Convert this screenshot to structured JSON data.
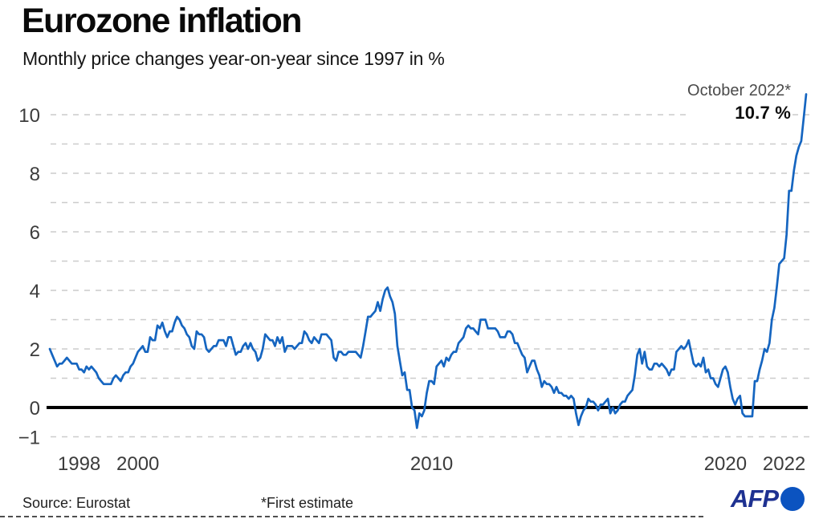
{
  "title": "Eurozone inflation",
  "subtitle": "Monthly price changes year-on-year since 1997 in %",
  "annotation": {
    "date": "October 2022*",
    "value": "10.7 %"
  },
  "footer": {
    "source": "Source: Eurostat",
    "note": "*First estimate",
    "brand": "AFP"
  },
  "colors": {
    "line": "#1565c0",
    "grid": "#cccccc",
    "zero_line": "#000000",
    "axis_label": "#3c3c3c",
    "annotation_date": "#4a4a4a",
    "annotation_value": "#0d0d0d",
    "brand_text": "#1e3191",
    "brand_dot": "#0b53c0"
  },
  "chart_data": {
    "type": "line",
    "title": "Eurozone inflation",
    "subtitle": "Monthly price changes year-on-year since 1997 in %",
    "ylabel": "%",
    "xlabel": "",
    "ylim": [
      -1.5,
      11
    ],
    "grid": "dashed horizontal at every integer, solid black line at 0",
    "legend_position": "none",
    "grid_values": [
      -1,
      0,
      1,
      2,
      3,
      4,
      5,
      6,
      7,
      8,
      9,
      10
    ],
    "y_ticks": [
      {
        "value": 10,
        "label": "10"
      },
      {
        "value": 8,
        "label": "8"
      },
      {
        "value": 6,
        "label": "6"
      },
      {
        "value": 4,
        "label": "4"
      },
      {
        "value": 2,
        "label": "2"
      },
      {
        "value": 0,
        "label": "0"
      },
      {
        "value": -1,
        "label": "−1"
      }
    ],
    "x_ticks": [
      {
        "year": 1998,
        "label": "1998"
      },
      {
        "year": 2000,
        "label": "2000"
      },
      {
        "year": 2010,
        "label": "2010"
      },
      {
        "year": 2020,
        "label": "2020"
      },
      {
        "year": 2022,
        "label": "2022"
      }
    ],
    "x_start_year": 1997,
    "start": "1997-01",
    "end": "2022-10",
    "frequency": "monthly",
    "last_point": {
      "label": "October 2022",
      "value": 10.7,
      "note": "First estimate"
    },
    "series": [
      {
        "name": "Eurozone inflation, % year-on-year",
        "values": [
          2.0,
          1.8,
          1.6,
          1.4,
          1.5,
          1.5,
          1.6,
          1.7,
          1.6,
          1.5,
          1.5,
          1.5,
          1.3,
          1.3,
          1.2,
          1.4,
          1.3,
          1.4,
          1.3,
          1.2,
          1.0,
          0.9,
          0.8,
          0.8,
          0.8,
          0.8,
          1.0,
          1.1,
          1.0,
          0.9,
          1.1,
          1.2,
          1.2,
          1.4,
          1.5,
          1.7,
          1.9,
          2.0,
          2.1,
          1.9,
          1.9,
          2.4,
          2.3,
          2.3,
          2.8,
          2.7,
          2.9,
          2.6,
          2.4,
          2.6,
          2.6,
          2.9,
          3.1,
          3.0,
          2.8,
          2.7,
          2.5,
          2.4,
          2.1,
          2.0,
          2.6,
          2.5,
          2.5,
          2.4,
          2.0,
          1.9,
          2.0,
          2.1,
          2.1,
          2.3,
          2.3,
          2.3,
          2.1,
          2.4,
          2.4,
          2.1,
          1.8,
          1.9,
          1.9,
          2.1,
          2.2,
          2.0,
          2.2,
          2.0,
          1.9,
          1.6,
          1.7,
          2.0,
          2.5,
          2.4,
          2.3,
          2.3,
          2.1,
          2.4,
          2.2,
          2.4,
          1.9,
          2.1,
          2.1,
          2.1,
          2.0,
          2.1,
          2.2,
          2.2,
          2.6,
          2.5,
          2.3,
          2.2,
          2.4,
          2.3,
          2.2,
          2.5,
          2.5,
          2.5,
          2.4,
          2.3,
          1.7,
          1.6,
          1.9,
          1.9,
          1.8,
          1.8,
          1.9,
          1.9,
          1.9,
          1.9,
          1.8,
          1.7,
          2.1,
          2.6,
          3.1,
          3.1,
          3.2,
          3.3,
          3.6,
          3.3,
          3.7,
          4.0,
          4.1,
          3.8,
          3.6,
          3.2,
          2.1,
          1.6,
          1.1,
          1.2,
          0.6,
          0.6,
          0.0,
          -0.1,
          -0.7,
          -0.2,
          -0.3,
          -0.1,
          0.5,
          0.9,
          0.9,
          0.8,
          1.4,
          1.5,
          1.6,
          1.4,
          1.7,
          1.6,
          1.8,
          1.9,
          1.9,
          2.2,
          2.3,
          2.4,
          2.7,
          2.8,
          2.7,
          2.7,
          2.6,
          2.5,
          3.0,
          3.0,
          3.0,
          2.7,
          2.7,
          2.7,
          2.7,
          2.6,
          2.4,
          2.4,
          2.4,
          2.6,
          2.6,
          2.5,
          2.2,
          2.2,
          2.0,
          1.8,
          1.7,
          1.2,
          1.4,
          1.6,
          1.6,
          1.3,
          1.1,
          0.7,
          0.9,
          0.8,
          0.8,
          0.7,
          0.5,
          0.7,
          0.5,
          0.5,
          0.4,
          0.4,
          0.3,
          0.4,
          0.3,
          -0.2,
          -0.6,
          -0.3,
          -0.1,
          0.0,
          0.3,
          0.2,
          0.2,
          0.1,
          -0.1,
          0.1,
          0.1,
          0.2,
          0.3,
          -0.2,
          0.0,
          -0.2,
          -0.1,
          0.1,
          0.2,
          0.2,
          0.4,
          0.5,
          0.6,
          1.1,
          1.8,
          2.0,
          1.5,
          1.9,
          1.4,
          1.3,
          1.3,
          1.5,
          1.5,
          1.4,
          1.5,
          1.4,
          1.3,
          1.1,
          1.3,
          1.3,
          1.9,
          2.0,
          2.1,
          2.0,
          2.1,
          2.3,
          1.9,
          1.5,
          1.4,
          1.5,
          1.4,
          1.7,
          1.2,
          1.3,
          1.0,
          1.0,
          0.8,
          0.7,
          1.0,
          1.3,
          1.4,
          1.2,
          0.7,
          0.3,
          0.1,
          0.3,
          0.4,
          -0.2,
          -0.3,
          -0.3,
          -0.3,
          -0.3,
          0.9,
          0.9,
          1.3,
          1.6,
          2.0,
          1.9,
          2.2,
          3.0,
          3.4,
          4.1,
          4.9,
          5.0,
          5.1,
          5.9,
          7.4,
          7.4,
          8.1,
          8.6,
          8.9,
          9.1,
          9.9,
          10.7
        ]
      }
    ]
  }
}
